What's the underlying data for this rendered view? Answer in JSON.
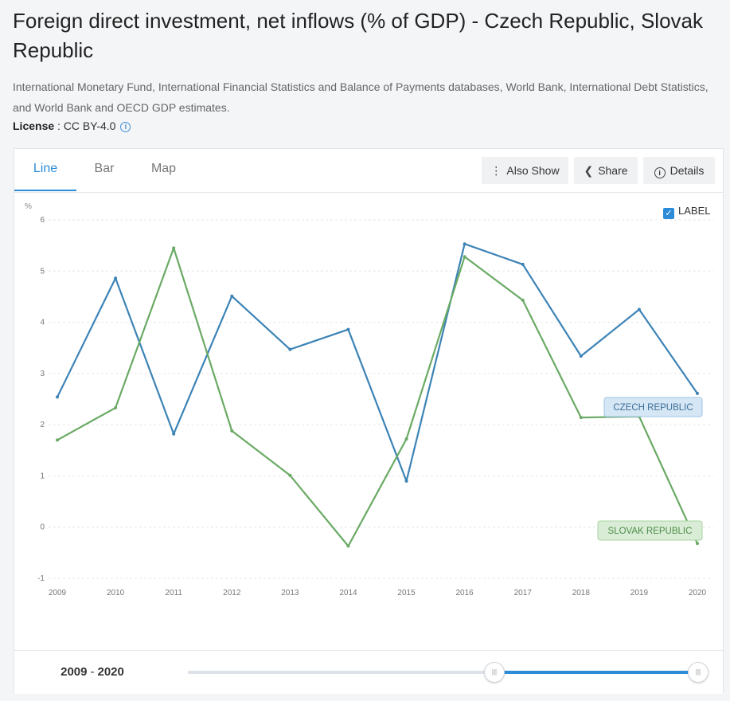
{
  "title": "Foreign direct investment, net inflows (% of GDP) - Czech Republic, Slovak Republic",
  "source": "International Monetary Fund, International Financial Statistics and Balance of Payments databases, World Bank, International Debt Statistics, and World Bank and OECD GDP estimates.",
  "license": {
    "label": "License",
    "sep": " : ",
    "value": "CC BY-4.0",
    "icon": "info-icon"
  },
  "tabs": [
    {
      "label": "Line",
      "active": true
    },
    {
      "label": "Bar",
      "active": false
    },
    {
      "label": "Map",
      "active": false
    }
  ],
  "toolbar": {
    "also_show": "Also Show",
    "share": "Share",
    "details": "Details"
  },
  "label_toggle": {
    "text": "LABEL",
    "checked": true
  },
  "range": {
    "start": "2009",
    "sep": "-",
    "end": "2020"
  },
  "slider": {
    "start_fraction": 0.6,
    "end_fraction": 1.0
  },
  "colors": {
    "czech": "#3c83b6",
    "slovak": "#6aaa64",
    "accent": "#2c8cd8"
  },
  "chart_data": {
    "type": "line",
    "ylabel": "%",
    "ylim": [
      -1,
      6
    ],
    "yticks": [
      -1,
      0,
      1,
      2,
      3,
      4,
      5,
      6
    ],
    "x": [
      "2009",
      "2010",
      "2011",
      "2012",
      "2013",
      "2014",
      "2015",
      "2016",
      "2017",
      "2018",
      "2019",
      "2020"
    ],
    "grid": true,
    "series": [
      {
        "name": "CZECH REPUBLIC",
        "values": [
          2.54,
          4.86,
          1.82,
          4.51,
          3.47,
          3.86,
          0.9,
          5.53,
          5.13,
          3.34,
          4.25,
          2.61
        ]
      },
      {
        "name": "SLOVAK REPUBLIC",
        "values": [
          1.7,
          2.33,
          5.45,
          1.88,
          1.01,
          -0.37,
          1.72,
          5.28,
          4.43,
          2.14,
          2.16,
          -0.32
        ]
      }
    ]
  }
}
